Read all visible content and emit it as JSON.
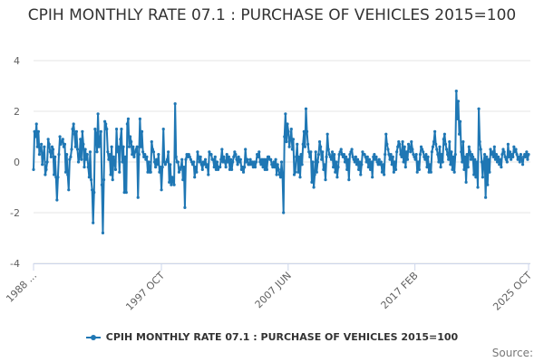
{
  "title": "CPIH MONTHLY RATE 07.1 : PURCHASE OF VEHICLES 2015=100",
  "credits": "Source:",
  "colors": {
    "series": "#1f77b4",
    "grid": "#e6e6e6",
    "axis": "#ccd6eb",
    "text": "#333333"
  },
  "chart_data": {
    "type": "line",
    "title": "CPIH MONTHLY RATE 07.1 : PURCHASE OF VEHICLES 2015=100",
    "xlabel": "",
    "ylabel": "",
    "ylim": [
      -4,
      4
    ],
    "yticks": [
      -4,
      -2,
      0,
      2,
      4
    ],
    "grid": true,
    "legend": "bottom",
    "x_tick_labels": [
      "1988 ...",
      "1997 OCT",
      "2007 JUN",
      "2017 FEB",
      "2025 OCT"
    ],
    "x_tick_dates": [
      "1988-01",
      "1997-10",
      "2007-06",
      "2017-02",
      "2025-10"
    ],
    "x_range": [
      "1988-01",
      "2025-10"
    ],
    "series": [
      {
        "name": "CPIH MONTHLY RATE 07.1 : PURCHASE OF VEHICLES 2015=100",
        "color": "#1f77b4",
        "marker": "circle",
        "values": [
          -0.3,
          1.2,
          1.0,
          1.5,
          0.6,
          1.2,
          0.3,
          0.5,
          0.7,
          -0.1,
          0.3,
          0.6,
          -0.5,
          -0.3,
          0.0,
          0.9,
          0.7,
          0.4,
          0.2,
          0.6,
          0.5,
          -0.5,
          0.2,
          -0.6,
          -1.5,
          -0.6,
          0.3,
          1.0,
          0.7,
          0.8,
          0.9,
          0.6,
          0.7,
          -0.4,
          0.3,
          -0.5,
          -1.1,
          0.1,
          0.2,
          0.5,
          1.3,
          1.5,
          1.1,
          0.6,
          1.2,
          0.5,
          0.0,
          0.2,
          0.9,
          0.1,
          1.2,
          0.7,
          -0.2,
          0.5,
          0.1,
          0.3,
          -0.2,
          -0.6,
          0.4,
          -0.7,
          -1.1,
          -2.4,
          -1.2,
          1.3,
          1.1,
          0.4,
          1.9,
          0.6,
          0.8,
          1.2,
          -0.9,
          -2.8,
          -0.7,
          1.6,
          1.5,
          1.3,
          0.4,
          0.1,
          0.3,
          -0.5,
          0.6,
          -0.7,
          0.2,
          0.0,
          -0.3,
          1.3,
          0.4,
          0.6,
          -0.4,
          0.9,
          1.3,
          0.0,
          0.6,
          -1.2,
          0.2,
          -1.2,
          1.5,
          1.7,
          0.6,
          1.0,
          0.8,
          0.3,
          0.6,
          0.2,
          0.4,
          0.5,
          0.6,
          -1.4,
          0.3,
          1.7,
          0.6,
          1.2,
          0.4,
          0.2,
          0.3,
          0.1,
          0.2,
          -0.4,
          0.0,
          -0.4,
          -0.4,
          0.8,
          0.5,
          0.4,
          0.0,
          -0.2,
          0.1,
          -0.1,
          0.3,
          -0.4,
          -0.2,
          -1.1,
          -0.2,
          1.3,
          0.0,
          -0.1,
          0.0,
          0.1,
          0.4,
          -0.8,
          -0.1,
          -0.9,
          -0.6,
          -0.8,
          -0.9,
          2.3,
          0.2,
          0.0,
          0.0,
          -0.4,
          -0.3,
          -0.2,
          0.1,
          -0.7,
          -0.2,
          -1.8,
          0.1,
          0.3,
          0.2,
          0.3,
          0.2,
          0.1,
          0.0,
          -0.1,
          0.0,
          -0.6,
          -0.2,
          -0.4,
          0.4,
          0.2,
          0.0,
          0.2,
          -0.1,
          -0.3,
          0.0,
          -0.1,
          0.1,
          -0.2,
          -0.1,
          -0.5,
          0.4,
          0.3,
          0.3,
          0.1,
          0.1,
          -0.2,
          0.2,
          -0.3,
          0.0,
          -0.3,
          -0.2,
          -0.2,
          0.1,
          0.5,
          0.0,
          0.2,
          0.0,
          -0.2,
          0.3,
          0.0,
          0.2,
          -0.3,
          0.1,
          -0.3,
          0.0,
          0.2,
          0.4,
          0.3,
          0.1,
          -0.1,
          0.2,
          0.0,
          0.1,
          -0.3,
          -0.2,
          -0.4,
          -0.2,
          0.5,
          0.0,
          0.1,
          -0.1,
          -0.1,
          0.1,
          -0.1,
          0.0,
          -0.2,
          0.0,
          -0.2,
          0.0,
          0.3,
          0.2,
          0.4,
          0.0,
          -0.1,
          0.1,
          -0.2,
          0.1,
          -0.3,
          0.1,
          -0.3,
          0.2,
          0.2,
          0.1,
          0.1,
          -0.1,
          -0.2,
          0.0,
          -0.2,
          0.1,
          -0.5,
          -0.1,
          -0.3,
          -0.5,
          -0.6,
          0.0,
          -0.6,
          -2.0,
          1.0,
          1.9,
          0.8,
          1.5,
          1.2,
          0.6,
          0.9,
          1.3,
          0.5,
          0.9,
          -0.5,
          -0.4,
          0.2,
          0.7,
          -0.4,
          0.2,
          -0.6,
          0.3,
          -0.1,
          0.7,
          1.2,
          0.6,
          2.1,
          1.2,
          0.7,
          0.4,
          0.2,
          0.4,
          -0.8,
          0.0,
          -1.0,
          -0.5,
          0.4,
          -0.4,
          0.0,
          0.3,
          0.8,
          0.6,
          0.1,
          0.4,
          -0.3,
          -0.1,
          -0.7,
          0.2,
          1.1,
          0.5,
          0.3,
          0.2,
          0.1,
          0.4,
          -0.2,
          0.3,
          -0.4,
          0.0,
          -0.6,
          -0.2,
          0.3,
          0.4,
          0.5,
          0.3,
          0.2,
          0.3,
          0.0,
          0.2,
          -0.3,
          0.1,
          -0.7,
          0.3,
          0.4,
          0.5,
          0.2,
          0.1,
          0.0,
          0.2,
          -0.1,
          0.1,
          -0.3,
          0.0,
          -0.5,
          -0.1,
          0.4,
          0.3,
          0.3,
          0.2,
          0.0,
          0.2,
          -0.2,
          0.1,
          -0.3,
          0.0,
          -0.6,
          0.2,
          0.3,
          0.1,
          0.2,
          0.0,
          -0.1,
          0.1,
          -0.1,
          0.0,
          -0.4,
          -0.1,
          -0.5,
          0.3,
          1.1,
          0.7,
          0.5,
          0.3,
          0.1,
          0.3,
          -0.1,
          0.2,
          -0.4,
          0.0,
          -0.3,
          0.4,
          0.6,
          0.8,
          0.7,
          0.3,
          0.2,
          0.8,
          0.0,
          0.6,
          -0.2,
          0.4,
          0.1,
          0.7,
          0.6,
          0.4,
          0.8,
          0.5,
          0.3,
          0.2,
          0.1,
          0.3,
          -0.4,
          0.0,
          -0.3,
          0.3,
          0.6,
          0.5,
          0.4,
          0.2,
          0.1,
          0.3,
          -0.2,
          0.2,
          -0.4,
          -0.1,
          -0.4,
          0.4,
          0.6,
          0.8,
          1.2,
          0.7,
          0.5,
          0.3,
          0.0,
          0.6,
          -0.2,
          0.3,
          0.0,
          0.9,
          1.1,
          0.7,
          0.5,
          0.3,
          0.1,
          0.8,
          -0.1,
          0.4,
          -0.3,
          0.2,
          -0.4,
          0.3,
          2.8,
          1.7,
          2.4,
          1.1,
          1.6,
          0.4,
          0.0,
          0.8,
          -0.3,
          0.2,
          -0.8,
          0.3,
          -0.2,
          0.6,
          0.4,
          0.1,
          0.3,
          0.2,
          -0.5,
          0.1,
          -0.6,
          0.0,
          -1.0,
          2.1,
          0.8,
          0.5,
          0.0,
          -0.6,
          0.0,
          0.3,
          -1.4,
          0.2,
          -0.9,
          0.1,
          -0.4,
          0.5,
          0.3,
          0.4,
          0.2,
          0.6,
          0.1,
          0.3,
          0.0,
          0.2,
          -0.1,
          0.1,
          -0.2,
          0.3,
          0.5,
          0.4,
          0.2,
          0.1,
          0.0,
          0.7,
          0.2,
          0.4,
          0.1,
          0.3,
          0.2,
          0.6,
          0.4,
          0.5,
          0.3,
          0.1,
          0.2,
          0.0,
          0.3,
          0.1,
          -0.1,
          0.2,
          0.3,
          0.2,
          0.4,
          0.1,
          0.3
        ]
      }
    ]
  }
}
